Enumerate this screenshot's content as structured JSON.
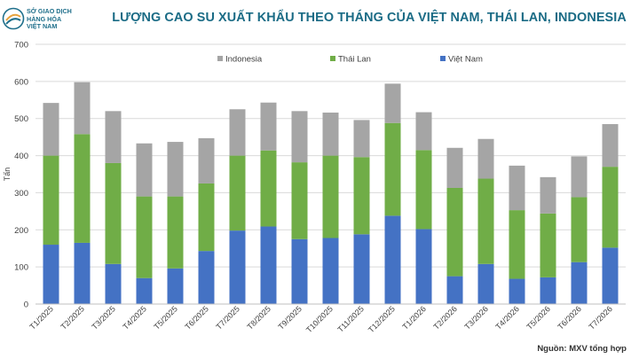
{
  "header": {
    "logo_lines": [
      "SỞ GIAO DỊCH",
      "HÀNG HÓA",
      "VIỆT NAM"
    ],
    "title": "LƯỢNG CAO SU XUẤT KHẨU THEO THÁNG CỦA VIỆT NAM, THÁI LAN, INDONESIA"
  },
  "source_note": "Nguồn: MXV tổng hợp",
  "colors": {
    "vietnam": "#4472c4",
    "thailand": "#70ad47",
    "indonesia": "#a5a5a5",
    "title": "#1a6b85"
  },
  "chart_data": {
    "type": "bar",
    "stacked": true,
    "title": "LƯỢNG CAO SU XUẤT KHẨU THEO THÁNG CỦA VIỆT NAM, THÁI LAN, INDONESIA",
    "xlabel": "",
    "ylabel": "Tấn",
    "ylim": [
      0,
      700
    ],
    "yticks": [
      0,
      100,
      200,
      300,
      400,
      500,
      600,
      700
    ],
    "grid": true,
    "legend_position": "top",
    "legend_order": [
      "Indonesia",
      "Thái Lan",
      "Việt Nam"
    ],
    "categories": [
      "T1/2025",
      "T2/2025",
      "T3/2025",
      "T4/2025",
      "T5/2025",
      "T6/2025",
      "T7/2025",
      "T8/2025",
      "T9/2025",
      "T10/2025",
      "T11/2025",
      "T12/2025",
      "T1/2026",
      "T2/2026",
      "T3/2026",
      "T4/2026",
      "T5/2026",
      "T6/2026",
      "T7/2026"
    ],
    "series": [
      {
        "name": "Việt Nam",
        "color": "#4472c4",
        "values": [
          160,
          165,
          108,
          70,
          96,
          143,
          198,
          209,
          175,
          178,
          188,
          238,
          202,
          75,
          108,
          68,
          72,
          113,
          152
        ]
      },
      {
        "name": "Thái Lan",
        "color": "#70ad47",
        "values": [
          240,
          293,
          272,
          220,
          194,
          182,
          202,
          205,
          207,
          222,
          208,
          250,
          213,
          238,
          230,
          185,
          172,
          175,
          218
        ]
      },
      {
        "name": "Indonesia",
        "color": "#a5a5a5",
        "values": [
          142,
          140,
          140,
          143,
          147,
          122,
          125,
          129,
          138,
          116,
          100,
          106,
          102,
          108,
          107,
          120,
          98,
          110,
          115
        ]
      }
    ]
  }
}
